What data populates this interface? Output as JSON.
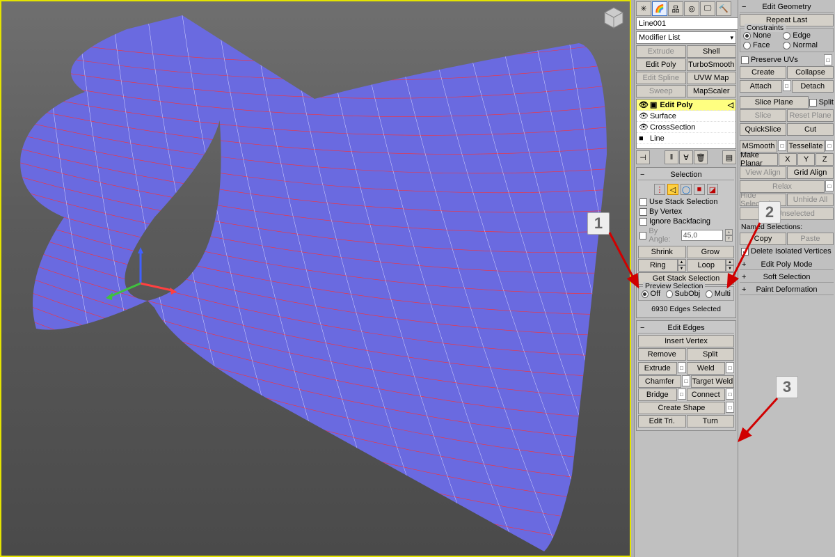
{
  "viewport": {
    "mesh_fill": "#6a6ae0",
    "mesh_line_selected": "#ff3030",
    "mesh_line": "#d0d0ff",
    "bg_top": "#6f6f6f",
    "bg_bot": "#4a4a4a",
    "gizmo_x": "#ff4040",
    "gizmo_y": "#40c040",
    "gizmo_z": "#4060ff"
  },
  "annotations": {
    "a1": "1",
    "a2": "2",
    "a3": "3"
  },
  "panelA": {
    "objectName": "Line001",
    "modifierList": "Modifier List",
    "modBtns": [
      "Extrude",
      "Shell",
      "Edit Poly",
      "TurboSmooth",
      "Edit Spline",
      "UVW Map",
      "Sweep",
      "MapScaler"
    ],
    "modDim": [
      true,
      false,
      false,
      false,
      true,
      false,
      true,
      false
    ],
    "stack": [
      {
        "icon": "👁",
        "label": "Edit Poly",
        "active": true,
        "box": true
      },
      {
        "icon": "👁",
        "label": "Surface",
        "active": false,
        "box": false
      },
      {
        "icon": "👁",
        "label": "CrossSection",
        "active": false,
        "box": false
      },
      {
        "icon": "■",
        "label": "Line",
        "active": false,
        "box": false
      }
    ],
    "selection": {
      "title": "Selection",
      "useStack": "Use Stack Selection",
      "byVertex": "By Vertex",
      "ignoreBF": "Ignore Backfacing",
      "byAngle": "By Angle:",
      "angleVal": "45,0",
      "shrink": "Shrink",
      "grow": "Grow",
      "ring": "Ring",
      "loop": "Loop",
      "getStack": "Get Stack Selection",
      "previewLbl": "Preview Selection",
      "off": "Off",
      "subObj": "SubObj",
      "multi": "Multi",
      "status": "6930 Edges Selected"
    },
    "editEdges": {
      "title": "Edit Edges",
      "insertVertex": "Insert Vertex",
      "remove": "Remove",
      "split": "Split",
      "extrude": "Extrude",
      "weld": "Weld",
      "chamfer": "Chamfer",
      "targetWeld": "Target Weld",
      "bridge": "Bridge",
      "connect": "Connect",
      "createShape": "Create Shape",
      "editTri": "Edit Tri.",
      "turn": "Turn"
    }
  },
  "panelB": {
    "editGeom": "Edit Geometry",
    "repeatLast": "Repeat Last",
    "constraintsLbl": "Constraints",
    "none": "None",
    "edge": "Edge",
    "face": "Face",
    "normal": "Normal",
    "preserveUVs": "Preserve UVs",
    "create": "Create",
    "collapse": "Collapse",
    "attach": "Attach",
    "detach": "Detach",
    "slicePlane": "Slice Plane",
    "splitChk": "Split",
    "slice": "Slice",
    "resetPlane": "Reset Plane",
    "quickSlice": "QuickSlice",
    "cut": "Cut",
    "msmooth": "MSmooth",
    "tessellate": "Tessellate",
    "makePlanar": "Make Planar",
    "x": "X",
    "y": "Y",
    "z": "Z",
    "viewAlign": "View Align",
    "gridAlign": "Grid Align",
    "relax": "Relax",
    "hideSel": "Hide Selected",
    "unhideAll": "Unhide All",
    "hideUnsel": "Hide Unselected",
    "namedSel": "Named Selections:",
    "copy": "Copy",
    "paste": "Paste",
    "delIso": "Delete Isolated Vertices",
    "editPolyMode": "Edit Poly Mode",
    "softSel": "Soft Selection",
    "paintDef": "Paint Deformation"
  }
}
